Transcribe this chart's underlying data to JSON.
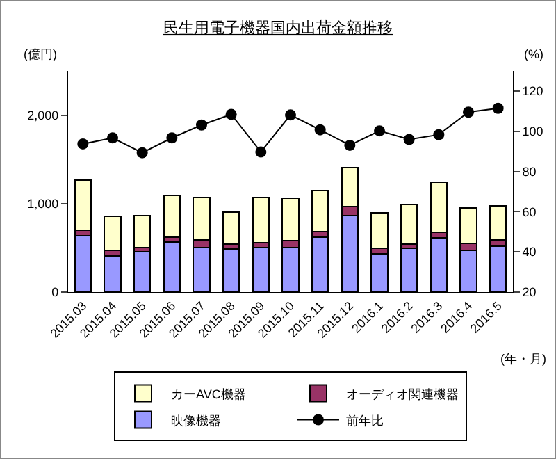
{
  "chart_data": {
    "type": "bar",
    "title": "民生用電子機器国内出荷金額推移",
    "ylabel": "(億円)",
    "y2label": "(%)",
    "xlabel": "(年・月)",
    "categories": [
      "2015.03",
      "2015.04",
      "2015.05",
      "2015.06",
      "2015.07",
      "2015.08",
      "2015.09",
      "2015.10",
      "2015.11",
      "2015.12",
      "2016.1",
      "2016.2",
      "2016.3",
      "2016.4",
      "2016.5"
    ],
    "stacked": true,
    "ylim": [
      0,
      2500
    ],
    "yticks": [
      0,
      {
        "value": 1000,
        "label": "1,000"
      },
      {
        "value": 2000,
        "label": "2,000"
      }
    ],
    "y2lim": [
      20,
      130
    ],
    "y2ticks": [
      20,
      40,
      60,
      80,
      100,
      120
    ],
    "series": [
      {
        "name": "映像機器",
        "color": "#9999ff",
        "values": [
          633,
          408,
          454,
          567,
          500,
          488,
          504,
          500,
          621,
          863,
          433,
          496,
          617,
          471,
          517
        ]
      },
      {
        "name": "オーディオ関連機器",
        "color": "#993366",
        "values": [
          63,
          63,
          50,
          54,
          88,
          58,
          54,
          83,
          62,
          104,
          59,
          50,
          58,
          79,
          71
        ]
      },
      {
        "name": "カーAVC機器",
        "color": "#ffffcc",
        "values": [
          566,
          383,
          358,
          471,
          479,
          358,
          513,
          475,
          463,
          441,
          404,
          446,
          567,
          400,
          387
        ]
      },
      {
        "name": "前年比",
        "type": "line",
        "axis": "y2",
        "color": "#000000",
        "marker": "circle",
        "line_style": "solid",
        "values": [
          93.7,
          96.7,
          89.3,
          96.7,
          103.1,
          108.4,
          89.7,
          108.1,
          100.7,
          93.0,
          100.2,
          95.9,
          98.3,
          109.5,
          111.4
        ]
      }
    ],
    "legend": "bottom",
    "grid": false
  }
}
